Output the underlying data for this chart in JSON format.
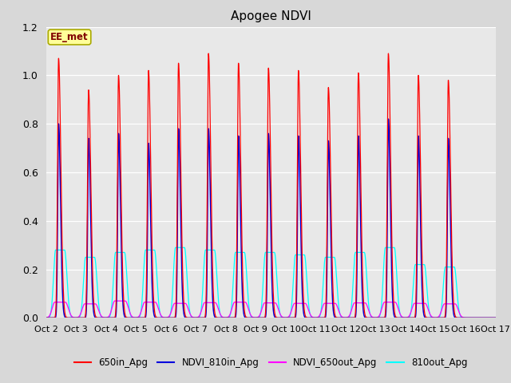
{
  "title": "Apogee NDVI",
  "outer_bg": "#d8d8d8",
  "plot_bg": "#e8e8e8",
  "xlim": [
    0,
    15
  ],
  "ylim": [
    0,
    1.2
  ],
  "yticks": [
    0.0,
    0.2,
    0.4,
    0.6,
    0.8,
    1.0,
    1.2
  ],
  "xtick_labels": [
    "Oct 2",
    "Oct 3",
    "Oct 4",
    "Oct 5",
    "Oct 6",
    "Oct 7",
    "Oct 8",
    "Oct 9",
    "Oct 10",
    "Oct 11",
    "Oct 12",
    "Oct 13",
    "Oct 14",
    "Oct 15",
    "Oct 16",
    "Oct 17"
  ],
  "num_days": 15,
  "annotation_text": "EE_met",
  "legend_entries": [
    "650in_Apg",
    "NDVI_810in_Apg",
    "NDVI_650out_Apg",
    "810out_Apg"
  ],
  "legend_colors": [
    "#ff0000",
    "#0000dd",
    "#ff00ff",
    "#00ffff"
  ],
  "color_red": "#ff0000",
  "color_blue": "#0000dd",
  "color_magenta": "#ff00ff",
  "color_cyan": "#00ffff",
  "peaks_red": [
    1.07,
    0.94,
    1.0,
    1.02,
    1.05,
    1.09,
    1.05,
    1.03,
    1.02,
    0.95,
    1.01,
    1.09,
    1.0,
    0.98
  ],
  "peaks_blue": [
    0.8,
    0.74,
    0.76,
    0.72,
    0.78,
    0.78,
    0.75,
    0.76,
    0.75,
    0.73,
    0.75,
    0.82,
    0.75,
    0.74
  ],
  "peaks_cyan": [
    0.28,
    0.25,
    0.27,
    0.28,
    0.29,
    0.28,
    0.27,
    0.27,
    0.26,
    0.25,
    0.27,
    0.29,
    0.22,
    0.21
  ],
  "peaks_magenta": [
    0.065,
    0.058,
    0.07,
    0.065,
    0.06,
    0.063,
    0.065,
    0.062,
    0.06,
    0.06,
    0.062,
    0.065,
    0.06,
    0.058
  ]
}
